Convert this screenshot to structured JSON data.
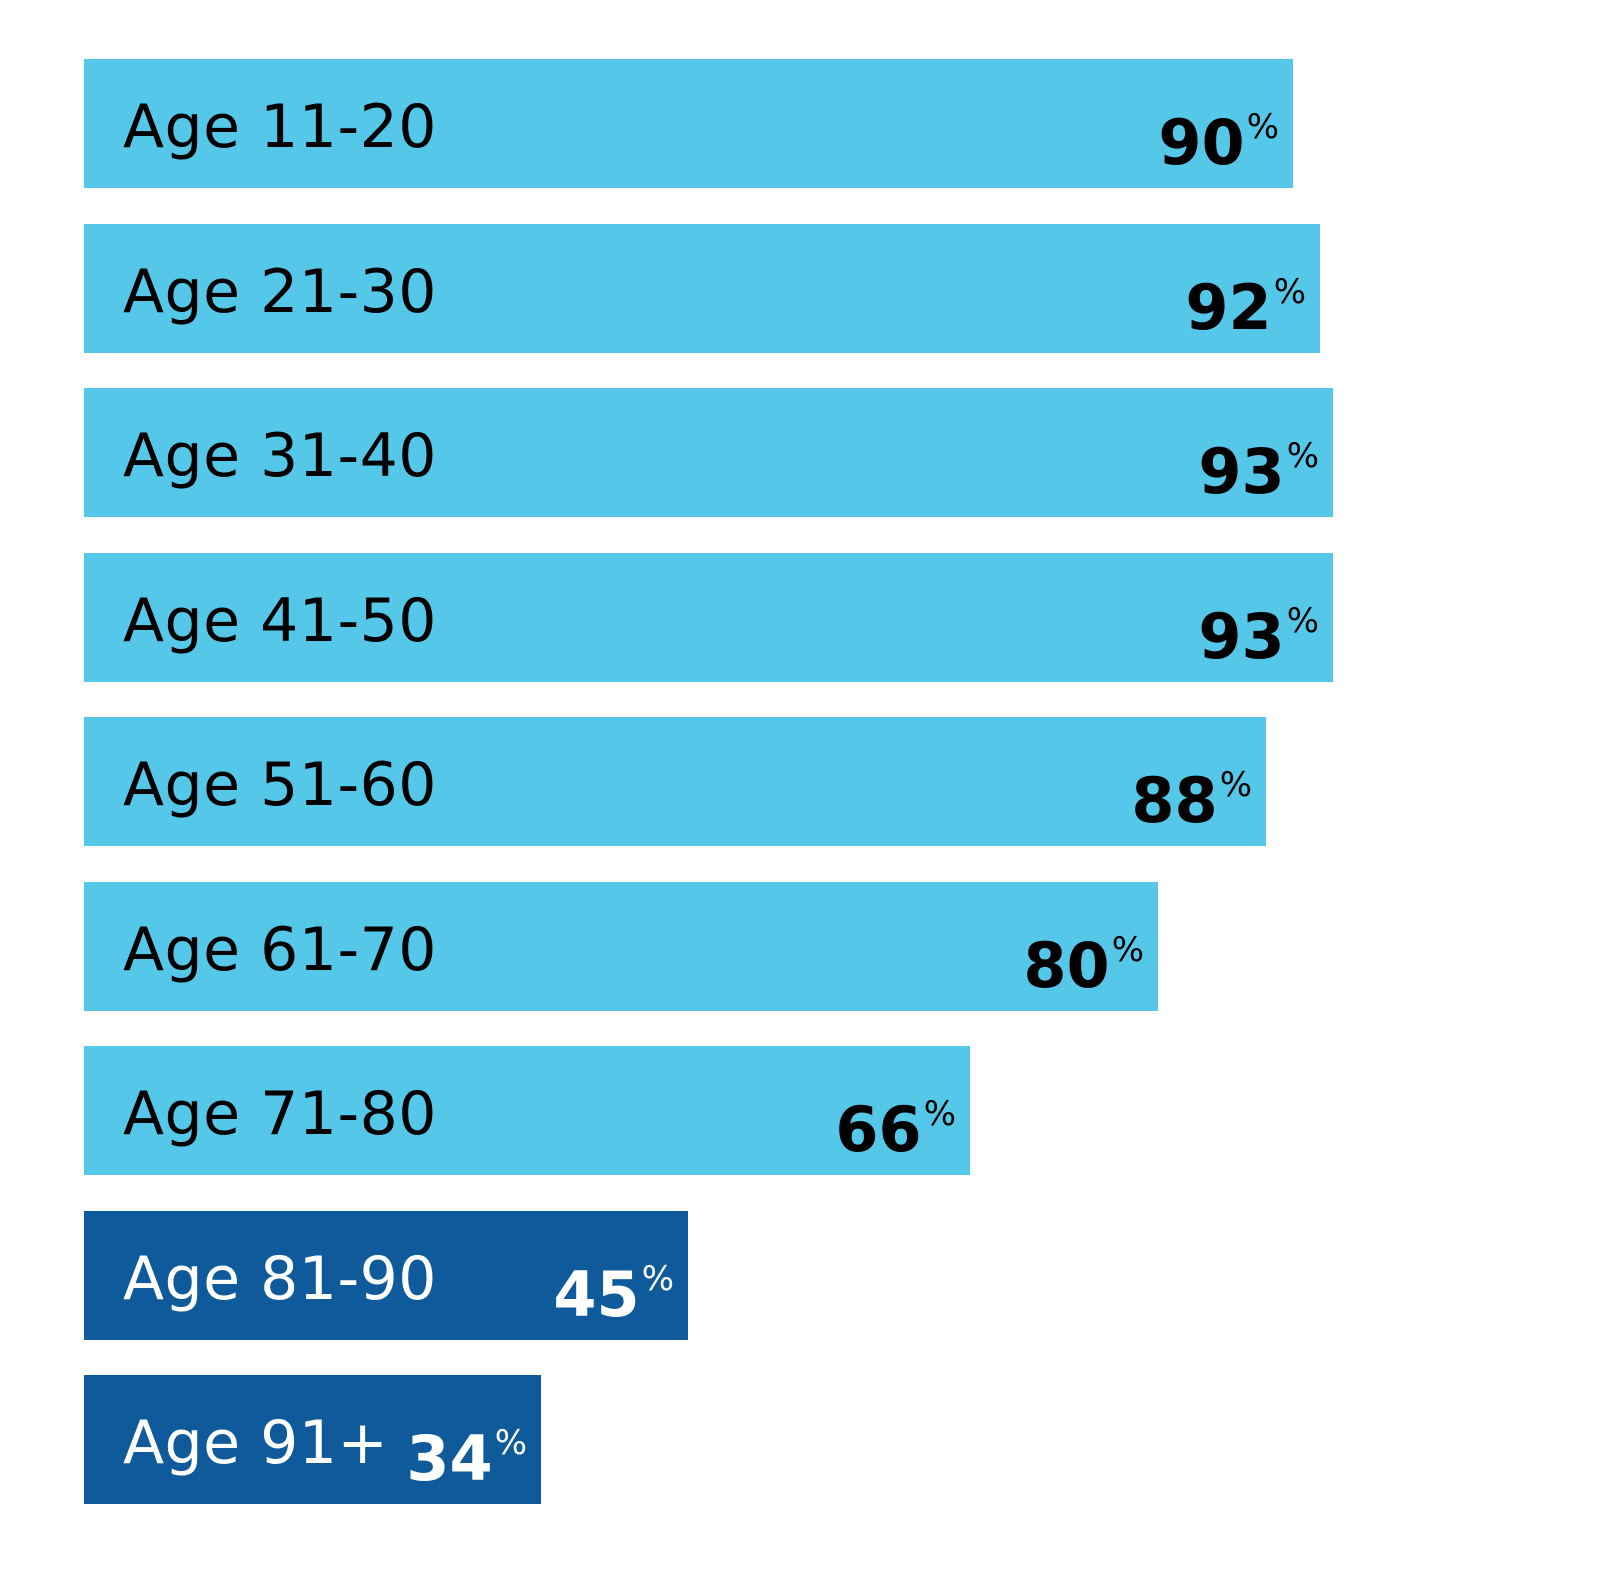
{
  "chart_data": {
    "type": "bar",
    "orientation": "horizontal",
    "categories": [
      "Age 11-20",
      "Age 21-30",
      "Age 31-40",
      "Age 41-50",
      "Age 51-60",
      "Age 61-70",
      "Age 71-80",
      "Age 81-90",
      "Age 91+"
    ],
    "values": [
      90,
      92,
      93,
      93,
      88,
      80,
      66,
      45,
      34
    ],
    "value_labels": [
      "90",
      "92",
      "93",
      "93",
      "88",
      "80",
      "66",
      "45",
      "34"
    ],
    "unit_symbol": "%",
    "xlim": [
      0,
      100
    ],
    "grid": false,
    "legend": "none",
    "colors": {
      "light_bar": "#55c8ea",
      "dark_bar": "#0e5a9a",
      "light_text": "#000000",
      "dark_text": "#ffffff"
    },
    "dark_categories": [
      "Age 81-90",
      "Age 91+"
    ]
  }
}
